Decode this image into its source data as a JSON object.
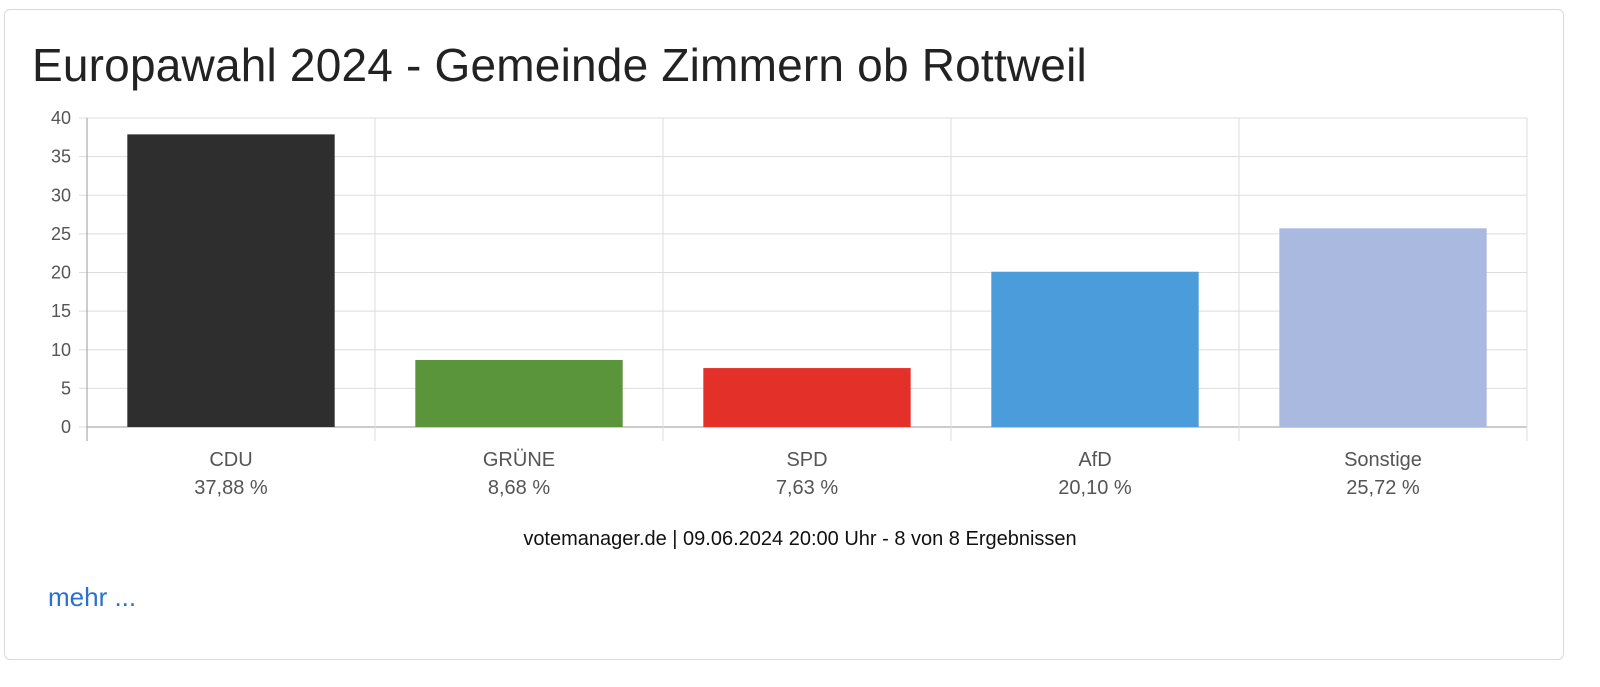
{
  "title": "Europawahl 2024 - Gemeinde Zimmern ob Rottweil",
  "footer": {
    "source": "votemanager.de | 09.06.2024 20:00 Uhr - 8 von 8 Ergebnissen",
    "more_label": "mehr ..."
  },
  "colors": {
    "link": "#2a6fd1",
    "grid": "#dddddd",
    "axis": "#9a9a9a"
  },
  "chart_data": {
    "type": "bar",
    "title": "",
    "xlabel": "",
    "ylabel": "",
    "ylim": [
      0,
      40
    ],
    "yticks": [
      0,
      5,
      10,
      15,
      20,
      25,
      30,
      35,
      40
    ],
    "grid": true,
    "categories": [
      "CDU",
      "GRÜNE",
      "SPD",
      "AfD",
      "Sonstige"
    ],
    "values": [
      37.88,
      8.68,
      7.63,
      20.1,
      25.72
    ],
    "value_labels": [
      "37,88 %",
      "8,68 %",
      "7,63 %",
      "20,10 %",
      "25,72 %"
    ],
    "colors": [
      "#2e2e2e",
      "#5a943b",
      "#e3312a",
      "#4a9cdb",
      "#aab9e0"
    ]
  }
}
